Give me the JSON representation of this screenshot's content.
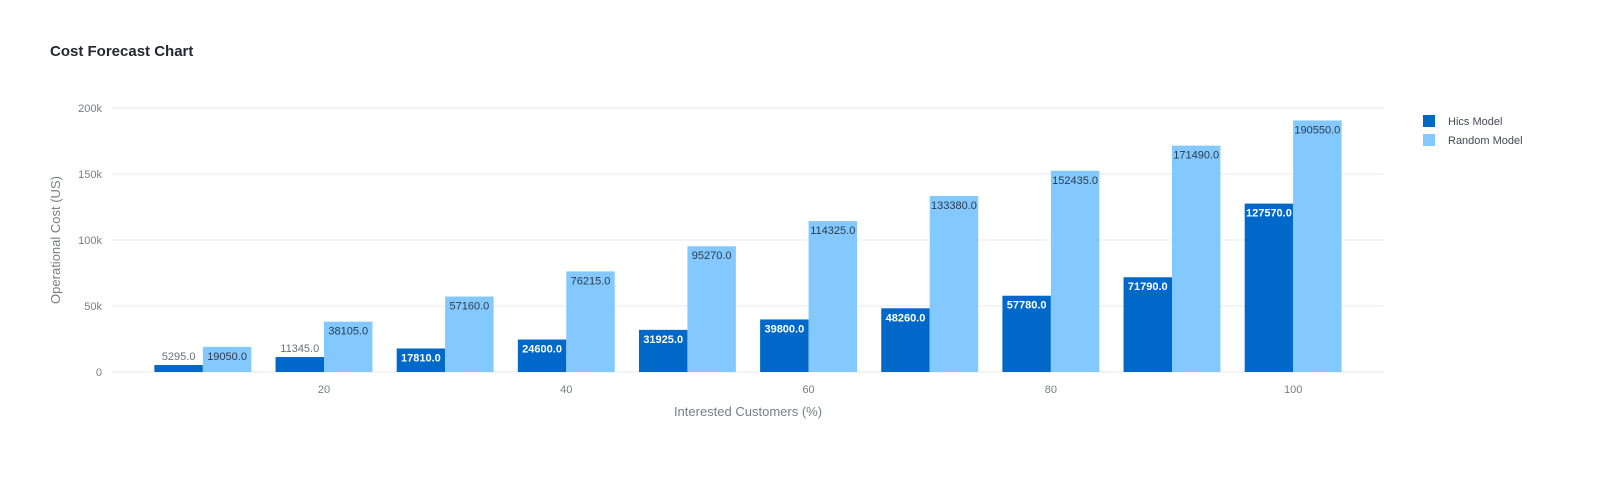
{
  "title": "Cost Forecast Chart",
  "colors": {
    "hics": "#0068c9",
    "random": "#83c9ff",
    "grid": "#e6e9ef"
  },
  "chart_data": {
    "type": "bar",
    "x": [
      10,
      20,
      30,
      40,
      50,
      60,
      70,
      80,
      90,
      100
    ],
    "x_ticks": [
      20,
      40,
      60,
      80,
      100
    ],
    "x_tick_labels": [
      "20",
      "40",
      "60",
      "80",
      "100"
    ],
    "y_ticks": [
      0,
      50000,
      100000,
      150000,
      200000
    ],
    "y_tick_labels": [
      "0",
      "50k",
      "100k",
      "150k",
      "200k"
    ],
    "xlabel": "Interested Customers (%)",
    "ylabel": "Operational Cost (US)",
    "xlim": [
      2.5,
      107.5
    ],
    "ylim": [
      0,
      200000
    ],
    "grid": true,
    "legend_position": "top-right",
    "series": [
      {
        "name": "Hics Model",
        "values": [
          5295.0,
          11345.0,
          17810.0,
          24600.0,
          31925.0,
          39800.0,
          48260.0,
          57780.0,
          71790.0,
          127570.0
        ],
        "labels": [
          "5295.0",
          "11345.0",
          "17810.0",
          "24600.0",
          "31925.0",
          "39800.0",
          "48260.0",
          "57780.0",
          "71790.0",
          "127570.0"
        ]
      },
      {
        "name": "Random Model",
        "values": [
          19050.0,
          38105.0,
          57160.0,
          76215.0,
          95270.0,
          114325.0,
          133380.0,
          152435.0,
          171490.0,
          190550.0
        ],
        "labels": [
          "19050.0",
          "38105.0",
          "57160.0",
          "76215.0",
          "95270.0",
          "114325.0",
          "133380.0",
          "152435.0",
          "171490.0",
          "190550.0"
        ]
      }
    ]
  }
}
